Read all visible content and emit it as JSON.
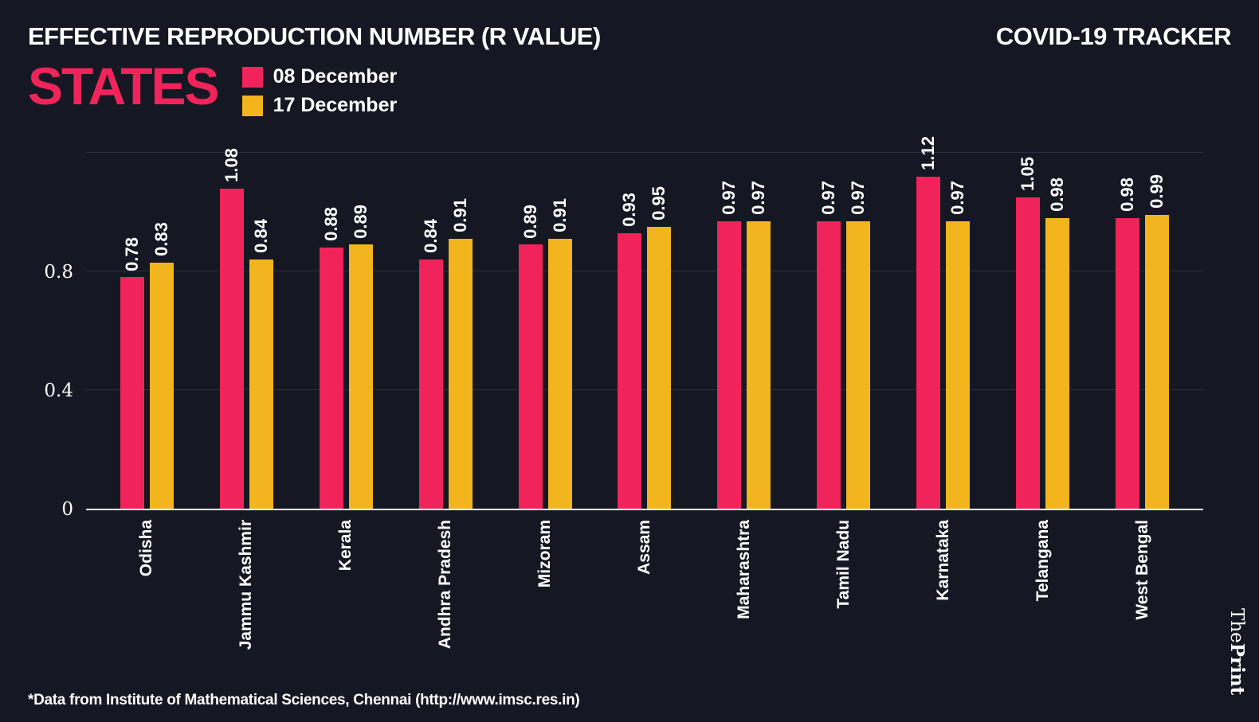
{
  "header": {
    "title": "EFFECTIVE REPRODUCTION NUMBER (R VALUE)",
    "tracker": "COVID-19 TRACKER"
  },
  "subheader": {
    "heading": "STATES"
  },
  "legend": [
    {
      "label": "08 December",
      "color": "#F0245B"
    },
    {
      "label": "17 December",
      "color": "#F2B51D"
    }
  ],
  "colors": {
    "background": "#151822",
    "accent_pink": "#F0245B",
    "accent_yellow": "#F2B51D",
    "text": "#FFFFFF"
  },
  "chart_data": {
    "type": "bar",
    "title": "EFFECTIVE REPRODUCTION NUMBER (R VALUE) - STATES",
    "categories": [
      "Odisha",
      "Jammu Kashmir",
      "Kerala",
      "Andhra Pradesh",
      "Mizoram",
      "Assam",
      "Maharashtra",
      "Tamil Nadu",
      "Karnataka",
      "Telangana",
      "West Bengal"
    ],
    "series": [
      {
        "name": "08 December",
        "color": "#F0245B",
        "values": [
          0.78,
          1.08,
          0.88,
          0.84,
          0.89,
          0.93,
          0.97,
          0.97,
          1.12,
          1.05,
          0.98
        ]
      },
      {
        "name": "17 December",
        "color": "#F2B51D",
        "values": [
          0.83,
          0.84,
          0.89,
          0.91,
          0.91,
          0.95,
          0.97,
          0.97,
          0.97,
          0.98,
          0.99
        ]
      }
    ],
    "xlabel": "",
    "ylabel": "",
    "ylim": [
      0,
      1.24
    ],
    "yticks": [
      {
        "value": 0,
        "label": "0"
      },
      {
        "value": 0.4,
        "label": "0.4"
      },
      {
        "value": 0.8,
        "label": "0.8"
      }
    ],
    "gridlines": [
      0.4,
      0.8,
      1.2
    ],
    "grid": true,
    "legend_position": "top-left",
    "value_labels_rotated": true,
    "category_labels_rotated": true
  },
  "footer": {
    "source": "*Data from Institute of Mathematical Sciences, Chennai (http://www.imsc.res.in)",
    "brand_the": "The",
    "brand_print": "Print"
  }
}
